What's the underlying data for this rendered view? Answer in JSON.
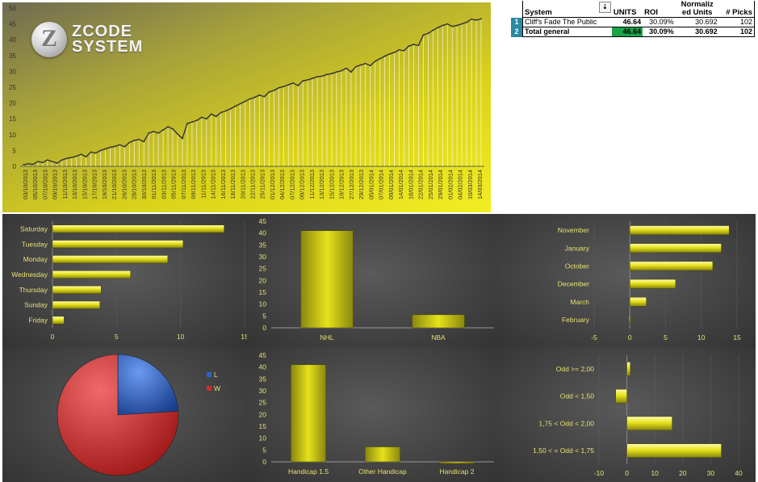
{
  "logo": {
    "line1": "ZCODE",
    "line2": "SYSTEM",
    "glyph": "Z"
  },
  "table": {
    "headers": {
      "system": "System",
      "units": "UNITS",
      "roi": "ROI",
      "normalized": "Normaliz\ned Units",
      "picks": "# Picks"
    },
    "filter_icon": "filter-dropdown-icon",
    "rows": [
      {
        "idx": "1",
        "system": "Cliff's Fade The Public",
        "units": "46.64",
        "roi": "30.09%",
        "normalized": "30.692",
        "picks": "102"
      },
      {
        "idx": "2",
        "system": "Total general",
        "units": "46.64",
        "roi": "30.09%",
        "normalized": "30.692",
        "picks": "102"
      }
    ]
  },
  "colors": {
    "bar": "#e6e21a",
    "bar_dark": "#8a8610",
    "text": "#e8e070",
    "pie_w": "#d42a2a",
    "pie_l": "#2a62c8",
    "line": "#333333"
  },
  "chart_data": [
    {
      "type": "line",
      "ylim": [
        0,
        50
      ],
      "yticks": [
        0,
        5,
        10,
        15,
        20,
        25,
        30,
        35,
        40,
        45,
        50
      ],
      "xticklabels": [
        "03/10/2013",
        "05/10/2013",
        "07/10/2013",
        "09/10/2013",
        "11/10/2013",
        "13/10/2013",
        "15/10/2013",
        "17/10/2013",
        "19/10/2013",
        "21/10/2013",
        "26/10/2013",
        "28/10/2013",
        "30/10/2013",
        "01/11/2013",
        "03/11/2013",
        "05/11/2013",
        "07/11/2013",
        "09/11/2013",
        "11/11/2013",
        "14/11/2013",
        "16/11/2013",
        "18/11/2013",
        "20/11/2013",
        "22/11/2013",
        "25/11/2013",
        "01/12/2013",
        "04/12/2013",
        "07/12/2013",
        "09/12/2013",
        "11/12/2013",
        "13/12/2013",
        "15/12/2013",
        "19/12/2013",
        "27/12/2013",
        "29/12/2013",
        "05/01/2014",
        "07/01/2014",
        "09/01/2014",
        "14/01/2014",
        "18/01/2014",
        "22/01/2014",
        "25/01/2014",
        "29/01/2014",
        "01/02/2014",
        "04/02/2014",
        "10/03/2014",
        "14/03/2014"
      ],
      "values": [
        0.5,
        0.8,
        0.6,
        1.5,
        1.2,
        2.0,
        1.5,
        1.0,
        2.0,
        2.5,
        2.8,
        3.2,
        3.8,
        3.0,
        4.5,
        4.2,
        5.0,
        5.5,
        6.0,
        6.3,
        6.8,
        6.2,
        7.5,
        8.2,
        8.5,
        7.8,
        10.5,
        11.0,
        10.5,
        11.5,
        12.5,
        11.8,
        10.2,
        8.8,
        13.5,
        14.0,
        14.5,
        15.5,
        15.0,
        16.5,
        15.8,
        17.0,
        17.5,
        18.2,
        19.0,
        19.8,
        20.5,
        21.3,
        21.8,
        22.5,
        22.0,
        23.5,
        24.0,
        24.8,
        25.2,
        25.8,
        26.3,
        25.5,
        27.0,
        27.3,
        27.8,
        28.3,
        28.5,
        29.0,
        29.3,
        29.8,
        30.2,
        31.0,
        29.8,
        31.5,
        32.0,
        32.5,
        31.8,
        33.2,
        34.0,
        34.8,
        35.5,
        36.0,
        36.8,
        36.5,
        38.0,
        38.5,
        38.2,
        41.5,
        42.0,
        43.0,
        43.8,
        44.5,
        45.0,
        44.2,
        44.5,
        45.0,
        45.5,
        46.5,
        46.2,
        46.6
      ]
    },
    {
      "type": "bar",
      "orientation": "horizontal",
      "categories": [
        "Saturday",
        "Tuesday",
        "Monday",
        "Wednesday",
        "Thursday",
        "Sunday",
        "Friday"
      ],
      "values": [
        13.4,
        10.2,
        9.0,
        6.1,
        3.8,
        3.7,
        0.9
      ],
      "xlim": [
        0,
        15
      ],
      "xticks": [
        0,
        5,
        10,
        15
      ]
    },
    {
      "type": "bar",
      "orientation": "vertical",
      "categories": [
        "NHL",
        "NBA"
      ],
      "values": [
        41.0,
        5.5
      ],
      "ylim": [
        0,
        45
      ],
      "yticks": [
        0,
        5,
        10,
        15,
        20,
        25,
        30,
        35,
        40,
        45
      ]
    },
    {
      "type": "bar",
      "orientation": "horizontal",
      "categories": [
        "November",
        "January",
        "October",
        "December",
        "March",
        "February"
      ],
      "values": [
        13.9,
        12.8,
        11.6,
        6.4,
        2.3,
        -0.1
      ],
      "xlim": [
        -5,
        15
      ],
      "xticks": [
        -5,
        0,
        5,
        10,
        15
      ]
    },
    {
      "type": "pie",
      "categories": [
        "L",
        "W"
      ],
      "values": [
        24,
        76
      ],
      "legend": "right"
    },
    {
      "type": "bar",
      "orientation": "vertical",
      "categories": [
        "Handicap 1.5",
        "Other Handicap",
        "Handicap 2"
      ],
      "values": [
        41.0,
        6.3,
        -0.6
      ],
      "ylim": [
        0,
        45
      ],
      "yticks": [
        0,
        5,
        10,
        15,
        20,
        25,
        30,
        35,
        40,
        45
      ]
    },
    {
      "type": "bar",
      "orientation": "horizontal",
      "categories": [
        "Odd >= 2,00",
        "Odd < 1,50",
        "1,75 < Odd < 2,00",
        "1,50 < = Odd < 1,75"
      ],
      "values": [
        1.2,
        -4.0,
        16.2,
        33.8
      ],
      "xlim": [
        -10,
        40
      ],
      "xticks": [
        -10,
        0,
        10,
        20,
        30,
        40
      ]
    }
  ]
}
